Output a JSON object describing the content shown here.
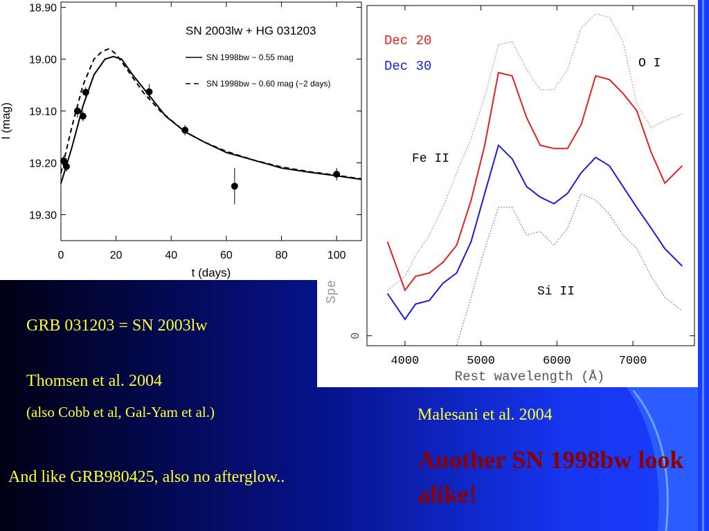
{
  "slide": {
    "heading": "GRB 031203 = SN 2003lw",
    "reference": "Thomsen et al. 2004",
    "also": "(also Cobb et al, Gal-Yam et al.)",
    "note": "And like GRB980425, also no afterglow..",
    "reference2": "Malesani et al. 2004",
    "conclusion": "Another SN 1998bw look alike!"
  },
  "chart_data": [
    {
      "type": "scatter",
      "title": "SN 2003lw + HG 031203",
      "xlabel": "t (days)",
      "ylabel": "I (mag)",
      "xlim": [
        0,
        109
      ],
      "ylim": [
        19.35,
        18.89
      ],
      "xticks": [
        0,
        20,
        40,
        60,
        80,
        100
      ],
      "yticks": [
        {
          "value": 18.9,
          "label": "18.90"
        },
        {
          "value": 19.0,
          "label": "19.00"
        },
        {
          "value": 19.1,
          "label": "19.10"
        },
        {
          "value": 19.2,
          "label": "19.20"
        },
        {
          "value": 19.3,
          "label": "19.30"
        }
      ],
      "series": [
        {
          "color": "#000000",
          "x": [
            1,
            2,
            6,
            8,
            9,
            32,
            45,
            63,
            100
          ],
          "values": [
            19.196,
            19.207,
            19.1,
            19.11,
            19.064,
            19.063,
            19.137,
            19.245,
            19.222
          ],
          "errors": [
            0.01,
            0.01,
            0.013,
            0.01,
            0.01,
            0.015,
            0.01,
            0.035,
            0.012
          ]
        },
        {
          "name": "SN 1998bw  − 0.55 mag",
          "color": "#000000",
          "style": "solid",
          "x": [
            0,
            4,
            8,
            12,
            16,
            19,
            22,
            26,
            32,
            38,
            45,
            52,
            60,
            70,
            80,
            90,
            100,
            109
          ],
          "values": [
            19.24,
            19.17,
            19.09,
            19.03,
            19.0,
            18.995,
            19.0,
            19.03,
            19.07,
            19.11,
            19.14,
            19.16,
            19.18,
            19.195,
            19.21,
            19.218,
            19.225,
            19.232
          ]
        },
        {
          "name": "SN 1998bw  − 0.60 mag (−2 days)",
          "color": "#000000",
          "style": "dashed",
          "x": [
            0,
            4,
            8,
            12,
            15,
            17.5,
            20,
            24,
            30,
            36,
            45,
            52,
            60,
            70,
            80,
            90,
            100,
            109
          ],
          "values": [
            19.22,
            19.13,
            19.05,
            19.0,
            18.985,
            18.98,
            18.99,
            19.02,
            19.065,
            19.1,
            19.14,
            19.16,
            19.178,
            19.195,
            19.208,
            19.217,
            19.224,
            19.231
          ]
        }
      ]
    },
    {
      "type": "line",
      "xlabel": "Rest wavelength (Å)",
      "ylabel": "Spe",
      "xlim": [
        3500,
        7810
      ],
      "ylim": [
        -0.3,
        10
      ],
      "xticks": [
        4000,
        5000,
        6000,
        7000
      ],
      "yticks": [
        0
      ],
      "annotations": [
        "O I",
        "Fe II",
        "Si II"
      ],
      "x": [
        3770,
        4000,
        4140,
        4320,
        4500,
        4680,
        4870,
        5050,
        5230,
        5410,
        5600,
        5780,
        5960,
        6140,
        6320,
        6510,
        6690,
        6870,
        7050,
        7240,
        7420,
        7650
      ],
      "series": [
        {
          "name": "Dec 20",
          "color": "#e3201c",
          "style": "solid",
          "values": [
            2.85,
            1.38,
            1.8,
            1.9,
            2.22,
            2.74,
            4.1,
            5.77,
            7.97,
            7.87,
            6.61,
            5.77,
            5.67,
            5.67,
            6.4,
            7.87,
            7.76,
            7.34,
            6.82,
            5.56,
            4.62,
            5.15
          ]
        },
        {
          "name": "Dec 30",
          "color": "#1a1adb",
          "style": "solid",
          "values": [
            1.28,
            0.5,
            0.96,
            1.07,
            1.59,
            1.9,
            2.85,
            4.31,
            5.77,
            5.36,
            4.52,
            4.2,
            4.0,
            4.31,
            4.94,
            5.4,
            5.15,
            4.52,
            3.89,
            3.26,
            2.64,
            2.11
          ]
        },
        {
          "color": "#e05050",
          "style": "dotted",
          "values": [
            1.38,
            1.8,
            2.43,
            3.05,
            3.89,
            4.94,
            5.98,
            7.24,
            8.81,
            8.91,
            8.07,
            7.45,
            7.45,
            8.07,
            9.33,
            9.75,
            9.64,
            8.91,
            7.03,
            6.3,
            6.51,
            6.72
          ]
        },
        {
          "color": "#3a3ad0",
          "style": "dotted",
          "values": [
            null,
            null,
            null,
            null,
            null,
            -0.29,
            1.17,
            2.64,
            3.89,
            3.89,
            3.05,
            3.16,
            2.74,
            3.26,
            4.31,
            4.1,
            3.68,
            3.05,
            2.64,
            1.8,
            1.17,
            0.75
          ]
        }
      ]
    }
  ]
}
